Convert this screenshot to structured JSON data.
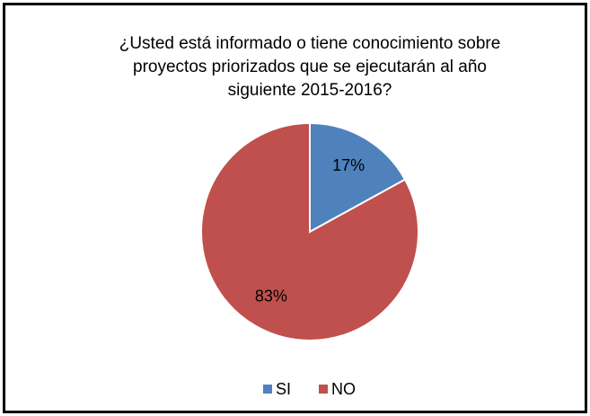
{
  "chart_data": {
    "type": "pie",
    "title": "¿Usted está informado o tiene conocimiento sobre\nproyectos priorizados que se ejecutarán al año\nsiguiente 2015-2016?",
    "categories": [
      "SI",
      "NO"
    ],
    "values": [
      17,
      83
    ],
    "value_labels": [
      "17%",
      "83%"
    ],
    "colors": [
      "#4f81bd",
      "#c0504d"
    ],
    "legend": "bottom"
  }
}
